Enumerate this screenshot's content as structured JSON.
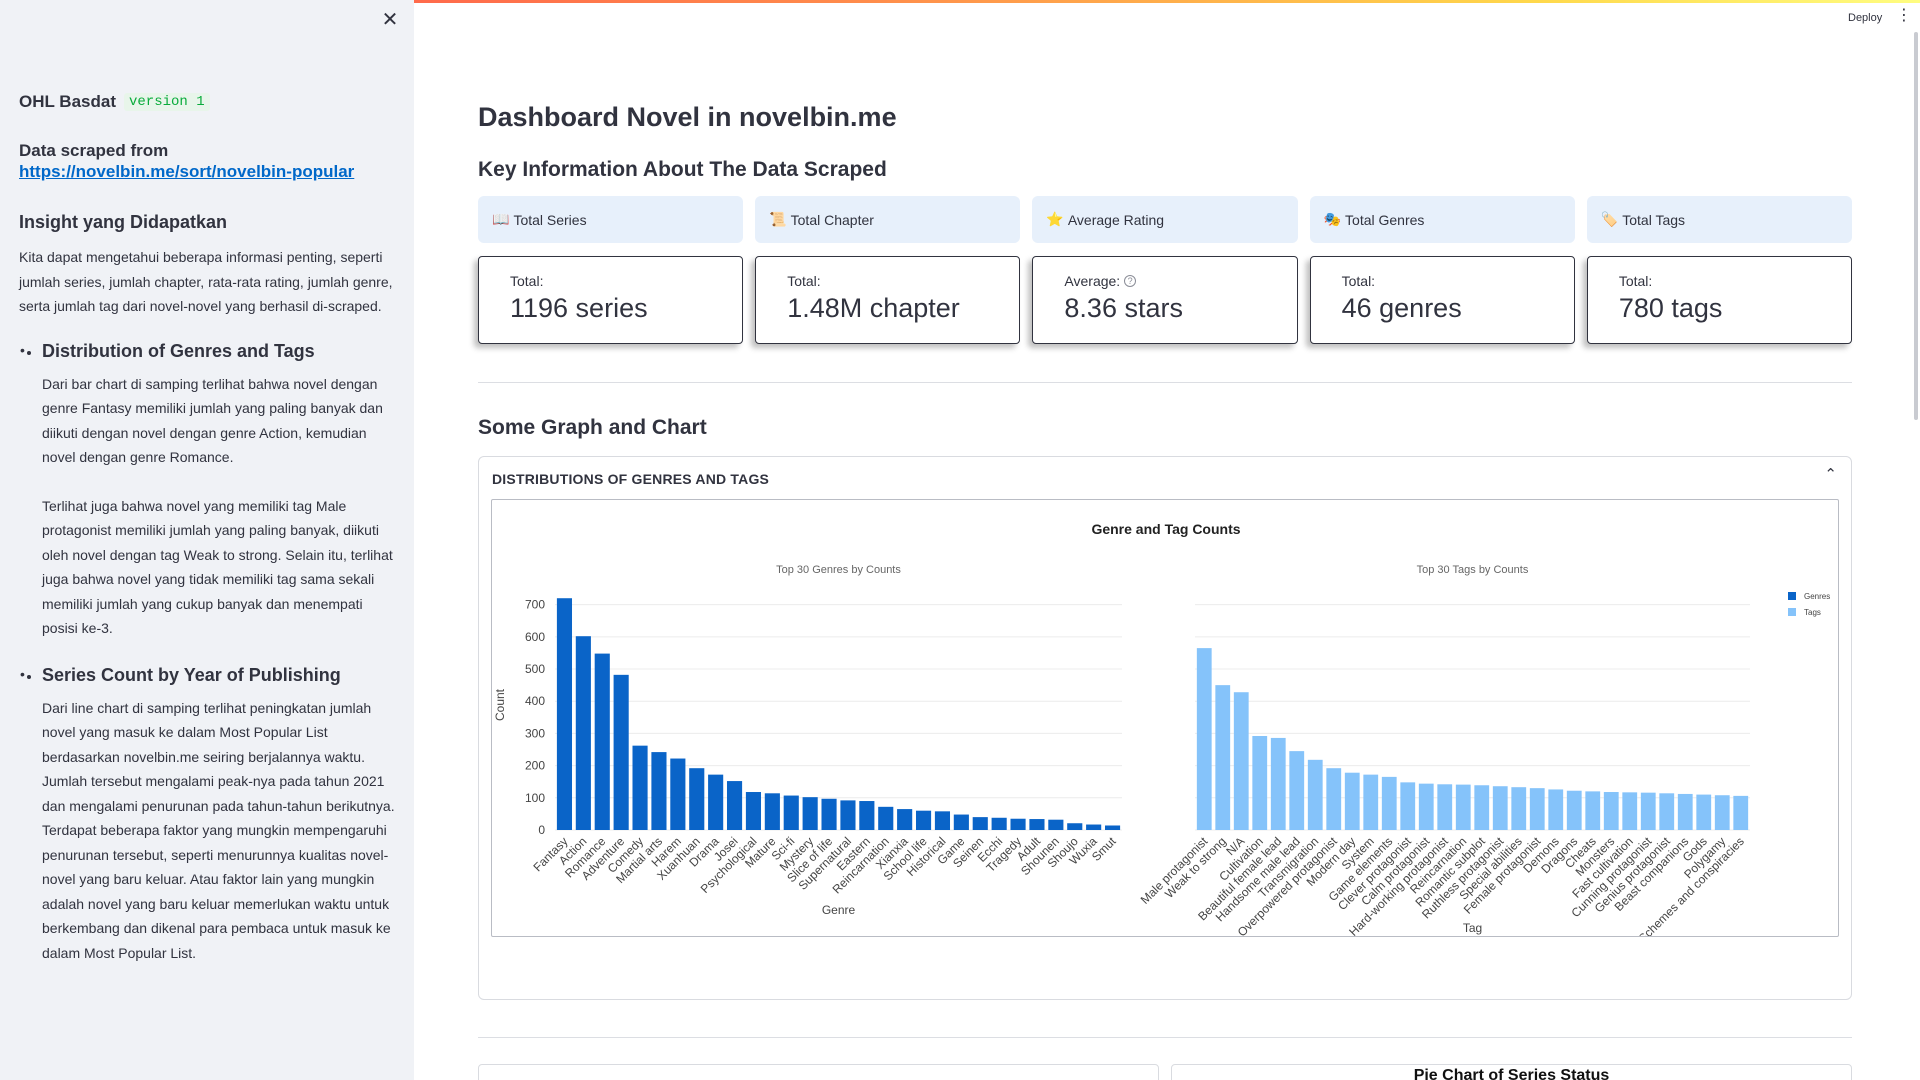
{
  "sidebar": {
    "close_icon": "close-icon",
    "app_name": "OHL Basdat",
    "version": "version 1",
    "scraped_label": "Data scraped from",
    "scraped_link": "https://novelbin.me/sort/novelbin-popular",
    "insight_title": "Insight yang Didapatkan",
    "insight_p1": "Kita dapat mengetahui beberapa informasi penting, seperti jumlah series, jumlah chapter, rata-rata rating, jumlah genre, serta jumlah tag dari novel-novel yang berhasil di-scraped.",
    "item1_title": "Distribution of Genres and Tags",
    "item1_p1": "Dari bar chart di samping terlihat bahwa novel dengan genre Fantasy memiliki jumlah yang paling banyak dan diikuti dengan novel dengan genre Action, kemudian novel dengan genre Romance.",
    "item1_p2": "Terlihat juga bahwa novel yang memiliki tag Male protagonist memiliki jumlah yang paling banyak, diikuti oleh novel dengan tag Weak to strong. Selain itu, terlihat juga bahwa novel yang tidak memiliki tag sama sekali memiliki jumlah yang cukup banyak dan menempati posisi ke-3.",
    "item2_title": "Series Count by Year of Publishing",
    "item2_p1": "Dari line chart di samping terlihat peningkatan jumlah novel yang masuk ke dalam Most Popular List berdasarkan novelbin.me seiring berjalannya waktu. Jumlah tersebut mengalami peak-nya pada tahun 2021 dan mengalami penurunan pada tahun-tahun berikutnya. Terdapat beberapa faktor yang mungkin mempengaruhi penurunan tersebut, seperti menurunnya kualitas novel-novel yang baru keluar. Atau faktor lain yang mungkin adalah novel yang baru keluar memerlukan waktu untuk berkembang dan dikenal para pembaca untuk masuk ke dalam Most Popular List."
  },
  "header": {
    "deploy_label": "Deploy",
    "menu_icon": "more-vertical-icon"
  },
  "main": {
    "title": "Dashboard Novel in novelbin.me",
    "key_info_title": "Key Information About The Data Scraped",
    "pills": [
      {
        "icon": "📖",
        "label": "Total Series"
      },
      {
        "icon": "📜",
        "label": "Total Chapter"
      },
      {
        "icon": "⭐",
        "label": "Average Rating"
      },
      {
        "icon": "🎭",
        "label": "Total Genres"
      },
      {
        "icon": "🏷️",
        "label": "Total Tags"
      }
    ],
    "metrics": [
      {
        "label": "Total:",
        "value": "1196 series"
      },
      {
        "label": "Total:",
        "value": "1.48M chapter"
      },
      {
        "label": "Average:",
        "value": "8.36 stars"
      },
      {
        "label": "Total:",
        "value": "46 genres"
      },
      {
        "label": "Total:",
        "value": "780 tags"
      }
    ],
    "graph_section_title": "Some Graph and Chart",
    "expander_title": "DISTRIBUTIONS OF GENRES AND TAGS",
    "pie_title": "Pie Chart of Series Status"
  },
  "chart_data": {
    "type": "bar",
    "title": "Genre and Tag Counts",
    "legend": [
      "Genres",
      "Tags"
    ],
    "legend_position": "top-right",
    "colors": {
      "Genres": "#0a64c8",
      "Tags": "#85c3fa"
    },
    "grid": true,
    "ylabel": "Count",
    "yticks": [
      0,
      100,
      200,
      300,
      400,
      500,
      600,
      700
    ],
    "subplots": [
      {
        "subtitle": "Top 30 Genres by Counts",
        "xlabel": "Genre",
        "series_name": "Genres",
        "ylim": [
          0,
          730
        ],
        "categories": [
          "Fantasy",
          "Action",
          "Romance",
          "Adventure",
          "Comedy",
          "Martial arts",
          "Harem",
          "Xuanhuan",
          "Drama",
          "Josei",
          "Psychological",
          "Mature",
          "Sci-fi",
          "Mystery",
          "Slice of life",
          "Supernatural",
          "Eastern",
          "Reincarnation",
          "Xianxia",
          "School life",
          "Historical",
          "Game",
          "Seinen",
          "Ecchi",
          "Tragedy",
          "Adult",
          "Shounen",
          "Shoujo",
          "Wuxia",
          "Smut"
        ],
        "values": [
          720,
          602,
          548,
          482,
          262,
          242,
          222,
          192,
          172,
          152,
          118,
          114,
          107,
          102,
          97,
          92,
          90,
          72,
          65,
          60,
          58,
          48,
          40,
          38,
          35,
          34,
          32,
          21,
          17,
          14
        ]
      },
      {
        "subtitle": "Top 30 Tags by Counts",
        "xlabel": "Tag",
        "series_name": "Tags",
        "ylim": [
          0,
          730
        ],
        "categories": [
          "Male protagonist",
          "Weak to strong",
          "N/A",
          "Cultivation",
          "Beautiful female lead",
          "Handsome male lead",
          "Transmigration",
          "Overpowered protagonist",
          "Modern day",
          "System",
          "Game elements",
          "Clever protagonist",
          "Calm protagonist",
          "Hard-working protagonist",
          "Reincarnation",
          "Romantic subplot",
          "Ruthless protagonist",
          "Special abilities",
          "Female protagonist",
          "Demons",
          "Dragons",
          "Cheats",
          "Monsters",
          "Fast cultivation",
          "Cunning protagonist",
          "Genius protagonist",
          "Beast companions",
          "Gods",
          "Polygamy",
          "Schemes and conspiracies"
        ],
        "values": [
          565,
          450,
          428,
          292,
          286,
          245,
          218,
          192,
          178,
          172,
          165,
          148,
          144,
          142,
          141,
          139,
          136,
          133,
          130,
          126,
          122,
          120,
          118,
          117,
          116,
          114,
          112,
          110,
          108,
          106
        ]
      }
    ]
  }
}
